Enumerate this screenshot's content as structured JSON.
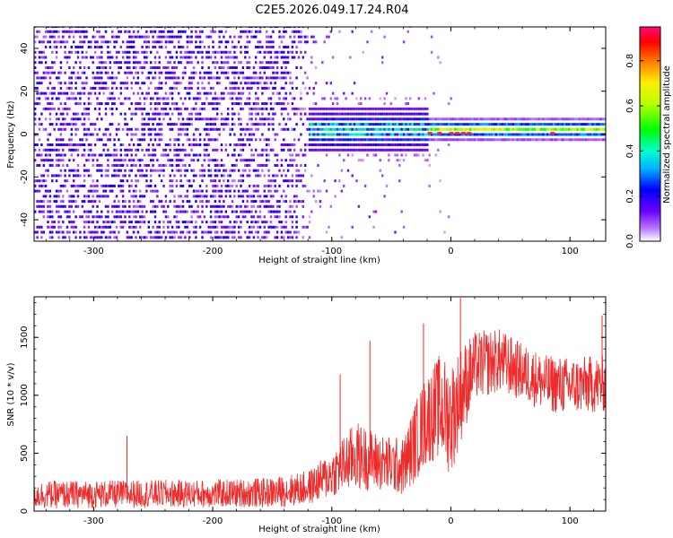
{
  "figure_title": "C2E5.2026.049.17.24.R04",
  "chart_data": [
    {
      "type": "heatmap",
      "xlabel": "Height of straight line (km)",
      "ylabel": "Frequency (Hz)",
      "xlim": [
        -350,
        130
      ],
      "ylim": [
        -50,
        50
      ],
      "xticks": [
        -300,
        -200,
        -100,
        0,
        100
      ],
      "yticks": [
        -40,
        -20,
        0,
        20,
        40
      ],
      "colorbar": {
        "label": "Normalized spectral amplitude",
        "range": [
          0,
          0.95
        ],
        "ticks": [
          0.0,
          0.2,
          0.4,
          0.6,
          0.8
        ]
      },
      "features": [
        {
          "name": "noise",
          "x_range": [
            -350,
            -120
          ],
          "freq_half_width": 50,
          "mean_amplitude": 0.15
        },
        {
          "name": "transition",
          "x_range": [
            -120,
            -20
          ],
          "freq_half_width": 10,
          "mean_amplitude": 0.35
        },
        {
          "name": "narrow line",
          "x_range": [
            -20,
            130
          ],
          "freq_center": 0,
          "freq_half_width": 2,
          "mean_amplitude": 0.6
        }
      ]
    },
    {
      "type": "line",
      "color": "#ee2a2a",
      "xlabel": "Height of straight line (km)",
      "ylabel": "SNR (10 * v/v)",
      "xlim": [
        -350,
        130
      ],
      "ylim": [
        0,
        1850
      ],
      "xticks": [
        -300,
        -200,
        -100,
        0,
        100
      ],
      "yticks": [
        0,
        500,
        1000,
        1500
      ],
      "series": [
        {
          "name": "SNR",
          "x": [
            -350,
            -300,
            -250,
            -200,
            -150,
            -120,
            -100,
            -80,
            -60,
            -40,
            -30,
            -20,
            -10,
            0,
            10,
            20,
            40,
            60,
            80,
            100,
            130
          ],
          "y": [
            140,
            145,
            150,
            150,
            160,
            200,
            320,
            480,
            420,
            380,
            600,
            800,
            900,
            800,
            1050,
            1250,
            1300,
            1200,
            1100,
            1080,
            1100
          ],
          "noise_amplitude": [
            120,
            120,
            120,
            120,
            130,
            150,
            200,
            300,
            250,
            250,
            350,
            400,
            450,
            500,
            400,
            300,
            280,
            250,
            250,
            250,
            250
          ],
          "spikes": [
            {
              "x": -272,
              "y": 650
            },
            {
              "x": -93,
              "y": 1180
            },
            {
              "x": -68,
              "y": 1470
            },
            {
              "x": -23,
              "y": 1620
            },
            {
              "x": 8,
              "y": 1840
            },
            {
              "x": 127,
              "y": 1690
            }
          ]
        }
      ]
    }
  ]
}
